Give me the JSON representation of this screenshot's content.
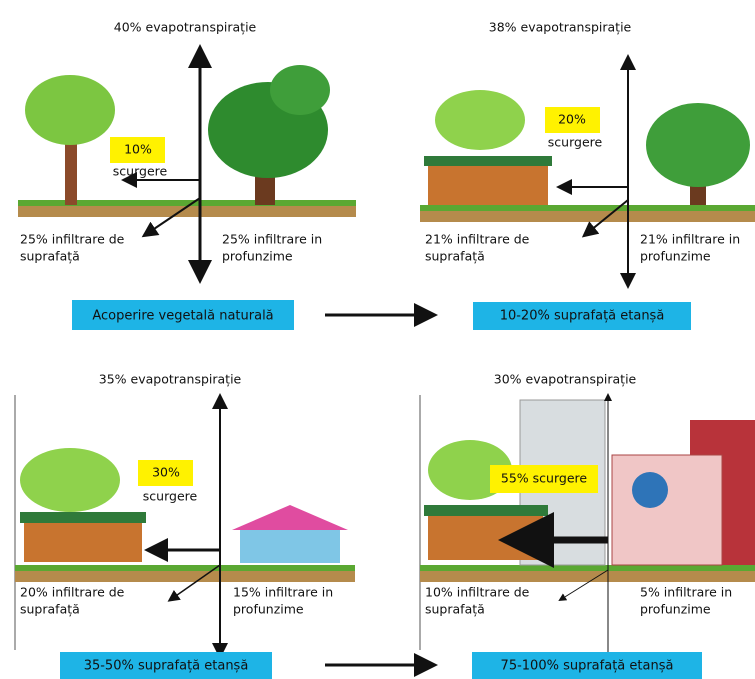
{
  "panels": [
    {
      "evapotranspiration": "40% evapotranspirație",
      "runoff": [
        "10%",
        "scurgere"
      ],
      "shallow_infiltration": [
        "25% infiltrare de",
        "suprafață"
      ],
      "deep_infiltration": [
        "25% infiltrare in",
        "profunzime"
      ],
      "caption": "Acoperire vegetală naturală"
    },
    {
      "evapotranspiration": "38% evapotranspirație",
      "runoff": [
        "20%",
        "scurgere"
      ],
      "shallow_infiltration": [
        "21% infiltrare de",
        "suprafață"
      ],
      "deep_infiltration": [
        "21% infiltrare in",
        "profunzime"
      ],
      "caption": "10-20% suprafață etanșă"
    },
    {
      "evapotranspiration": "35% evapotranspirație",
      "runoff": [
        "30%",
        "scurgere"
      ],
      "shallow_infiltration": [
        "20% infiltrare de",
        "suprafață"
      ],
      "deep_infiltration": [
        "15% infiltrare in",
        "profunzime"
      ],
      "caption": "35-50% suprafață etanșă"
    },
    {
      "evapotranspiration": "30% evapotranspirație",
      "runoff": [
        "55% scurgere"
      ],
      "shallow_infiltration": [
        "10% infiltrare de",
        "suprafață"
      ],
      "deep_infiltration": [
        "5% infiltrare in",
        "profunzime"
      ],
      "caption": "75-100% suprafață etanșă"
    }
  ]
}
